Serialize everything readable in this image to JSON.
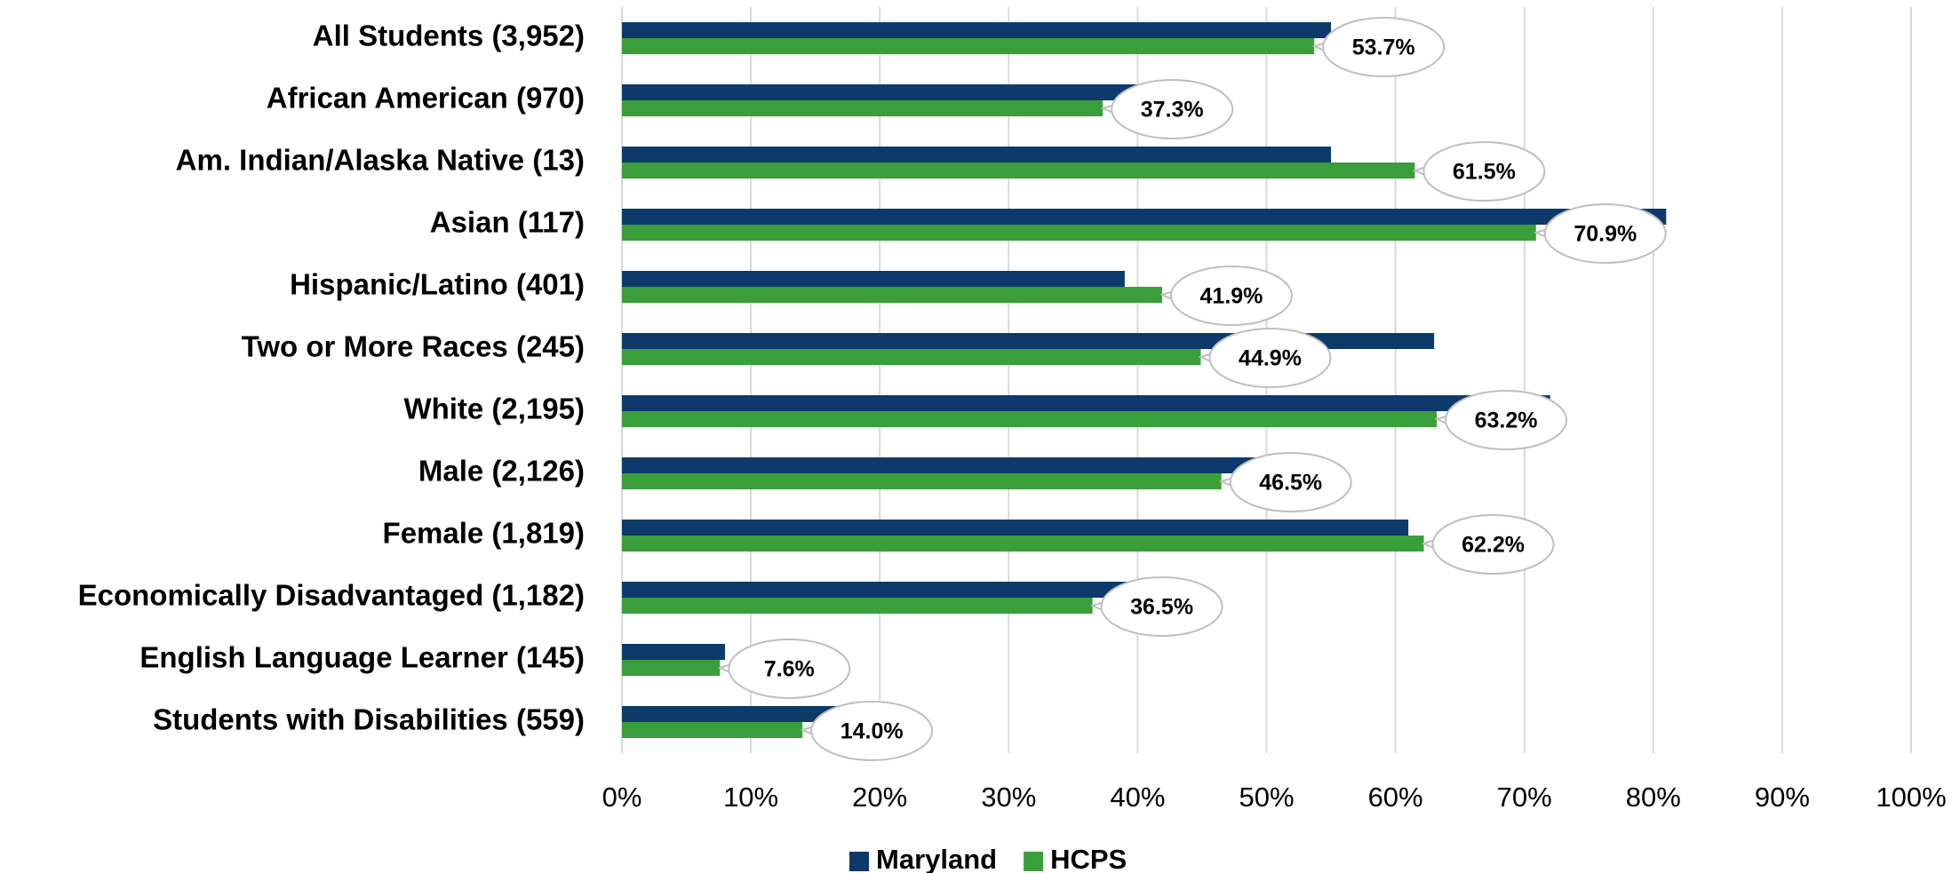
{
  "chart_data": {
    "type": "bar",
    "orientation": "horizontal",
    "categories": [
      "All Students (3,952)",
      "African American (970)",
      "Am. Indian/Alaska Native (13)",
      "Asian (117)",
      "Hispanic/Latino (401)",
      "Two or More Races (245)",
      "White (2,195)",
      "Male (2,126)",
      "Female (1,819)",
      "Economically Disadvantaged (1,182)",
      "English Language Learner (145)",
      "Students with Disabilities (559)"
    ],
    "series": [
      {
        "name": "Maryland",
        "color": "#0d3a6b",
        "values": [
          55,
          43,
          55,
          81,
          39,
          63,
          72,
          50,
          61,
          40,
          8,
          17
        ]
      },
      {
        "name": "HCPS",
        "color": "#3a9e3a",
        "values": [
          53.7,
          37.3,
          61.5,
          70.9,
          41.9,
          44.9,
          63.2,
          46.5,
          62.2,
          36.5,
          7.6,
          14.0
        ],
        "value_labels": [
          "53.7%",
          "37.3%",
          "61.5%",
          "70.9%",
          "41.9%",
          "44.9%",
          "63.2%",
          "46.5%",
          "62.2%",
          "36.5%",
          "7.6%",
          "14.0%"
        ]
      }
    ],
    "xlim": [
      0,
      100
    ],
    "xticks": [
      {
        "value": 0,
        "label": "0%"
      },
      {
        "value": 10,
        "label": "10%"
      },
      {
        "value": 20,
        "label": "20%"
      },
      {
        "value": 30,
        "label": "30%"
      },
      {
        "value": 40,
        "label": "40%"
      },
      {
        "value": 50,
        "label": "50%"
      },
      {
        "value": 60,
        "label": "60%"
      },
      {
        "value": 70,
        "label": "70%"
      },
      {
        "value": 80,
        "label": "80%"
      },
      {
        "value": 90,
        "label": "90%"
      },
      {
        "value": 100,
        "label": "100%"
      }
    ],
    "grid": true,
    "legend": "bottom"
  }
}
